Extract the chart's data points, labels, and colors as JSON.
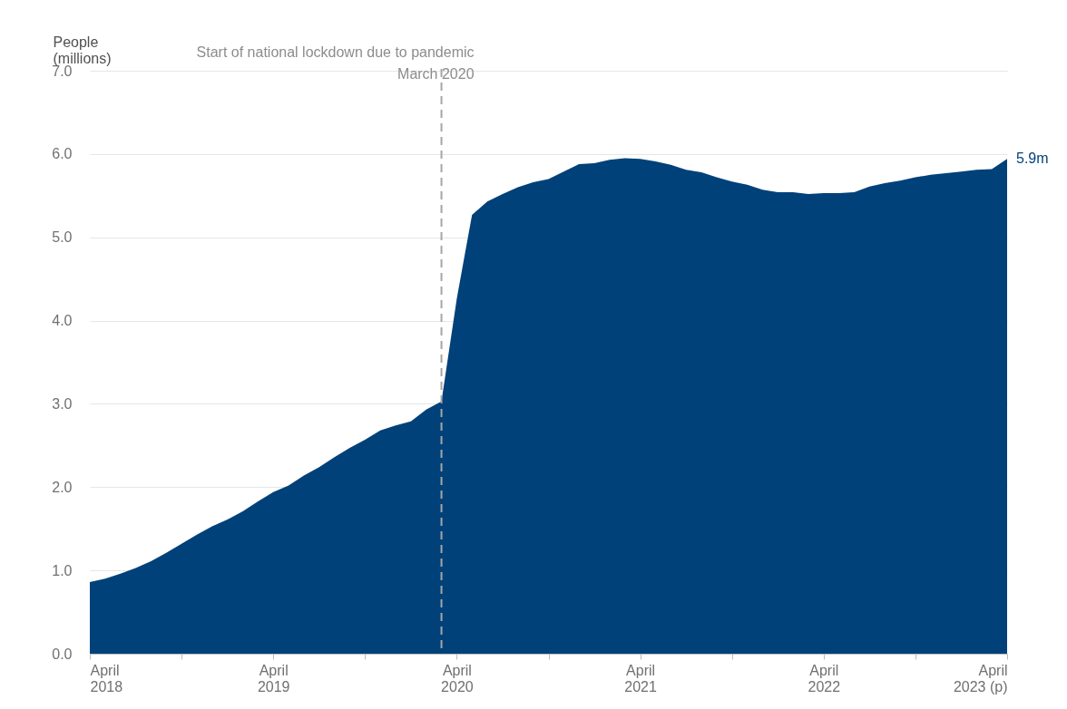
{
  "chart_data": {
    "type": "area",
    "ylabel": "People\n(millions)",
    "x": [
      "2018-04",
      "2018-05",
      "2018-06",
      "2018-07",
      "2018-08",
      "2018-09",
      "2018-10",
      "2018-11",
      "2018-12",
      "2019-01",
      "2019-02",
      "2019-03",
      "2019-04",
      "2019-05",
      "2019-06",
      "2019-07",
      "2019-08",
      "2019-09",
      "2019-10",
      "2019-11",
      "2019-12",
      "2020-01",
      "2020-02",
      "2020-03",
      "2020-04",
      "2020-05",
      "2020-06",
      "2020-07",
      "2020-08",
      "2020-09",
      "2020-10",
      "2020-11",
      "2020-12",
      "2021-01",
      "2021-02",
      "2021-03",
      "2021-04",
      "2021-05",
      "2021-06",
      "2021-07",
      "2021-08",
      "2021-09",
      "2021-10",
      "2021-11",
      "2021-12",
      "2022-01",
      "2022-02",
      "2022-03",
      "2022-04",
      "2022-05",
      "2022-06",
      "2022-07",
      "2022-08",
      "2022-09",
      "2022-10",
      "2022-11",
      "2022-12",
      "2023-01",
      "2023-02",
      "2023-03",
      "2023-04"
    ],
    "series": [
      {
        "color": "#004179",
        "values": [
          0.86,
          0.9,
          0.96,
          1.03,
          1.11,
          1.21,
          1.32,
          1.43,
          1.53,
          1.61,
          1.71,
          1.83,
          1.94,
          2.02,
          2.14,
          2.24,
          2.36,
          2.47,
          2.57,
          2.68,
          2.74,
          2.79,
          2.93,
          3.03,
          4.26,
          5.27,
          5.43,
          5.52,
          5.6,
          5.66,
          5.7,
          5.79,
          5.88,
          5.89,
          5.93,
          5.95,
          5.94,
          5.91,
          5.87,
          5.81,
          5.78,
          5.72,
          5.67,
          5.63,
          5.57,
          5.54,
          5.54,
          5.52,
          5.53,
          5.53,
          5.54,
          5.61,
          5.65,
          5.68,
          5.72,
          5.75,
          5.77,
          5.79,
          5.81,
          5.82,
          5.94
        ]
      }
    ],
    "xlim": [
      "2018-04",
      "2023-04"
    ],
    "xticks": [
      {
        "value": "2018-04",
        "label": "April\n2018"
      },
      {
        "value": "2018-10",
        "label": null
      },
      {
        "value": "2019-04",
        "label": "April\n2019"
      },
      {
        "value": "2019-10",
        "label": null
      },
      {
        "value": "2020-04",
        "label": "April\n2020"
      },
      {
        "value": "2020-10",
        "label": null
      },
      {
        "value": "2021-04",
        "label": "April\n2021"
      },
      {
        "value": "2021-10",
        "label": null
      },
      {
        "value": "2022-04",
        "label": "April\n2022"
      },
      {
        "value": "2022-10",
        "label": null
      },
      {
        "value": "2023-04",
        "label": "April\n2023 (p)"
      }
    ],
    "ylim": [
      0,
      7
    ],
    "yticks": [
      {
        "value": 0,
        "label": "0.0"
      },
      {
        "value": 1,
        "label": "1.0"
      },
      {
        "value": 2,
        "label": "2.0"
      },
      {
        "value": 3,
        "label": "3.0"
      },
      {
        "value": 4,
        "label": "4.0"
      },
      {
        "value": 5,
        "label": "5.0"
      },
      {
        "value": 6,
        "label": "6.0"
      },
      {
        "value": 7,
        "label": "7.0"
      }
    ],
    "ref_lines": [
      {
        "axis": "x",
        "value": "2020-03",
        "label": "Start of national lockdown due to pandemic\nMarch 2020",
        "color": "#a6a6a6",
        "line_style": "dashed"
      }
    ],
    "annotations": [
      {
        "text": "5.9m",
        "x": "2023-04",
        "y": 5.94
      }
    ],
    "grid": "y",
    "legend": false
  }
}
